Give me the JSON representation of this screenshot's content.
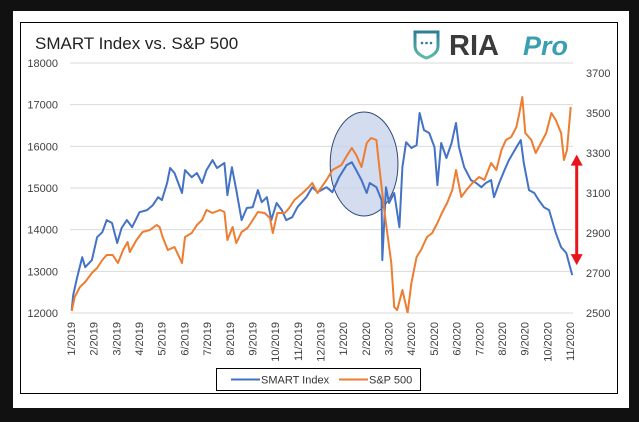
{
  "logo": {
    "text_main": "RIA",
    "text_accent": "Pro",
    "icon": "shield-icon",
    "colors": {
      "main": "#3b3b3b",
      "accent": "#3a9fb0"
    }
  },
  "chart_data": {
    "type": "line",
    "title": "SMART Index vs. S&P 500",
    "xlabel": "",
    "ylabel": "",
    "x_tick_labels": [
      "1/2019",
      "2/2019",
      "3/2019",
      "4/2019",
      "5/2019",
      "6/2019",
      "7/2019",
      "8/2019",
      "9/2019",
      "10/2019",
      "11/2019",
      "12/2019",
      "1/2020",
      "2/2020",
      "3/2020",
      "4/2020",
      "5/2020",
      "6/2020",
      "7/2020",
      "8/2020",
      "9/2020",
      "10/2020",
      "11/2020"
    ],
    "xlim": [
      "2019-01-01",
      "2020-11-01"
    ],
    "ylim_left": [
      12000,
      18000
    ],
    "y_left_ticks": [
      "18000",
      "17000",
      "16000",
      "15000",
      "14000",
      "13000",
      "12000"
    ],
    "ylim_right": [
      2500,
      3750
    ],
    "y_right_ticks": [
      "3700",
      "3500",
      "3300",
      "3100",
      "2900",
      "2700",
      "2500"
    ],
    "grid": true,
    "legend_placement": "bottom",
    "series": [
      {
        "name": "SMART Index",
        "axis": "left",
        "color": "#4472c4",
        "points": [
          [
            "2019-01-02",
            12070
          ],
          [
            "2019-01-04",
            12430
          ],
          [
            "2019-01-09",
            12840
          ],
          [
            "2019-01-16",
            13340
          ],
          [
            "2019-01-20",
            13100
          ],
          [
            "2019-01-29",
            13270
          ],
          [
            "2019-02-05",
            13820
          ],
          [
            "2019-02-12",
            13940
          ],
          [
            "2019-02-18",
            14230
          ],
          [
            "2019-02-25",
            14160
          ],
          [
            "2019-03-04",
            13680
          ],
          [
            "2019-03-10",
            14040
          ],
          [
            "2019-03-17",
            14230
          ],
          [
            "2019-03-24",
            14060
          ],
          [
            "2019-04-03",
            14420
          ],
          [
            "2019-04-13",
            14470
          ],
          [
            "2019-04-21",
            14590
          ],
          [
            "2019-04-28",
            14780
          ],
          [
            "2019-05-03",
            14710
          ],
          [
            "2019-05-10",
            15120
          ],
          [
            "2019-05-14",
            15480
          ],
          [
            "2019-05-20",
            15360
          ],
          [
            "2019-05-30",
            14880
          ],
          [
            "2019-06-03",
            15430
          ],
          [
            "2019-06-12",
            15260
          ],
          [
            "2019-06-19",
            15360
          ],
          [
            "2019-06-26",
            15120
          ],
          [
            "2019-07-02",
            15430
          ],
          [
            "2019-07-10",
            15670
          ],
          [
            "2019-07-16",
            15480
          ],
          [
            "2019-07-22",
            15550
          ],
          [
            "2019-07-26",
            15600
          ],
          [
            "2019-07-30",
            14830
          ],
          [
            "2019-08-05",
            15500
          ],
          [
            "2019-08-11",
            14950
          ],
          [
            "2019-08-18",
            14230
          ],
          [
            "2019-08-25",
            14520
          ],
          [
            "2019-09-02",
            14540
          ],
          [
            "2019-09-09",
            14950
          ],
          [
            "2019-09-14",
            14660
          ],
          [
            "2019-09-21",
            14780
          ],
          [
            "2019-09-27",
            14230
          ],
          [
            "2019-10-04",
            14640
          ],
          [
            "2019-10-11",
            14470
          ],
          [
            "2019-10-17",
            14230
          ],
          [
            "2019-10-25",
            14300
          ],
          [
            "2019-11-01",
            14540
          ],
          [
            "2019-11-13",
            14780
          ],
          [
            "2019-11-21",
            15020
          ],
          [
            "2019-11-28",
            14900
          ],
          [
            "2019-12-10",
            15020
          ],
          [
            "2019-12-18",
            14900
          ],
          [
            "2019-12-27",
            15260
          ],
          [
            "2020-01-06",
            15550
          ],
          [
            "2020-01-13",
            15620
          ],
          [
            "2020-01-19",
            15430
          ],
          [
            "2020-01-26",
            15190
          ],
          [
            "2020-02-02",
            14880
          ],
          [
            "2020-02-06",
            15120
          ],
          [
            "2020-02-15",
            15020
          ],
          [
            "2020-02-22",
            14710
          ],
          [
            "2020-02-23",
            13270
          ],
          [
            "2020-02-28",
            15020
          ],
          [
            "2020-03-03",
            14640
          ],
          [
            "2020-03-10",
            14880
          ],
          [
            "2020-03-17",
            14060
          ],
          [
            "2020-03-21",
            15500
          ],
          [
            "2020-03-26",
            16100
          ],
          [
            "2020-04-02",
            15960
          ],
          [
            "2020-04-09",
            16030
          ],
          [
            "2020-04-13",
            16800
          ],
          [
            "2020-04-19",
            16390
          ],
          [
            "2020-04-26",
            16320
          ],
          [
            "2020-05-03",
            15980
          ],
          [
            "2020-05-07",
            15070
          ],
          [
            "2020-05-12",
            16080
          ],
          [
            "2020-05-19",
            15720
          ],
          [
            "2020-05-26",
            16080
          ],
          [
            "2020-06-01",
            16560
          ],
          [
            "2020-06-05",
            15980
          ],
          [
            "2020-06-12",
            15500
          ],
          [
            "2020-06-21",
            15190
          ],
          [
            "2020-06-28",
            15120
          ],
          [
            "2020-07-05",
            15020
          ],
          [
            "2020-07-11",
            15120
          ],
          [
            "2020-07-18",
            15190
          ],
          [
            "2020-07-22",
            14780
          ],
          [
            "2020-07-29",
            15120
          ],
          [
            "2020-08-05",
            15430
          ],
          [
            "2020-08-11",
            15670
          ],
          [
            "2020-08-21",
            15980
          ],
          [
            "2020-08-27",
            16150
          ],
          [
            "2020-08-31",
            15600
          ],
          [
            "2020-09-07",
            14950
          ],
          [
            "2020-09-14",
            14880
          ],
          [
            "2020-09-20",
            14710
          ],
          [
            "2020-09-27",
            14540
          ],
          [
            "2020-10-04",
            14470
          ],
          [
            "2020-10-13",
            13920
          ],
          [
            "2020-10-20",
            13580
          ],
          [
            "2020-10-27",
            13440
          ],
          [
            "2020-11-04",
            12910
          ]
        ]
      },
      {
        "name": "S&P 500",
        "axis": "right",
        "color": "#ed7d31",
        "points": [
          [
            "2019-01-02",
            2510
          ],
          [
            "2019-01-06",
            2580
          ],
          [
            "2019-01-13",
            2630
          ],
          [
            "2019-01-20",
            2655
          ],
          [
            "2019-01-29",
            2700
          ],
          [
            "2019-02-05",
            2725
          ],
          [
            "2019-02-12",
            2765
          ],
          [
            "2019-02-18",
            2790
          ],
          [
            "2019-02-26",
            2790
          ],
          [
            "2019-03-05",
            2750
          ],
          [
            "2019-03-12",
            2815
          ],
          [
            "2019-03-18",
            2855
          ],
          [
            "2019-03-21",
            2805
          ],
          [
            "2019-03-30",
            2865
          ],
          [
            "2019-04-07",
            2905
          ],
          [
            "2019-04-17",
            2915
          ],
          [
            "2019-04-26",
            2940
          ],
          [
            "2019-04-30",
            2930
          ],
          [
            "2019-05-04",
            2880
          ],
          [
            "2019-05-11",
            2815
          ],
          [
            "2019-05-20",
            2830
          ],
          [
            "2019-05-30",
            2750
          ],
          [
            "2019-06-03",
            2880
          ],
          [
            "2019-06-12",
            2900
          ],
          [
            "2019-06-19",
            2940
          ],
          [
            "2019-06-26",
            2965
          ],
          [
            "2019-07-02",
            3015
          ],
          [
            "2019-07-10",
            3000
          ],
          [
            "2019-07-20",
            3015
          ],
          [
            "2019-07-26",
            3005
          ],
          [
            "2019-07-30",
            2865
          ],
          [
            "2019-08-06",
            2930
          ],
          [
            "2019-08-11",
            2850
          ],
          [
            "2019-08-18",
            2905
          ],
          [
            "2019-08-26",
            2925
          ],
          [
            "2019-09-02",
            2965
          ],
          [
            "2019-09-09",
            3005
          ],
          [
            "2019-09-18",
            3000
          ],
          [
            "2019-09-25",
            2975
          ],
          [
            "2019-09-29",
            2900
          ],
          [
            "2019-10-05",
            3000
          ],
          [
            "2019-10-15",
            3000
          ],
          [
            "2019-10-21",
            3025
          ],
          [
            "2019-10-28",
            3065
          ],
          [
            "2019-11-08",
            3100
          ],
          [
            "2019-11-15",
            3125
          ],
          [
            "2019-11-21",
            3150
          ],
          [
            "2019-11-28",
            3100
          ],
          [
            "2019-12-10",
            3165
          ],
          [
            "2019-12-18",
            3215
          ],
          [
            "2019-12-30",
            3240
          ],
          [
            "2020-01-07",
            3290
          ],
          [
            "2020-01-13",
            3325
          ],
          [
            "2020-01-19",
            3290
          ],
          [
            "2020-01-26",
            3230
          ],
          [
            "2020-02-02",
            3350
          ],
          [
            "2020-02-08",
            3375
          ],
          [
            "2020-02-15",
            3365
          ],
          [
            "2020-02-19",
            3230
          ],
          [
            "2020-02-26",
            3000
          ],
          [
            "2020-03-06",
            2750
          ],
          [
            "2020-03-10",
            2530
          ],
          [
            "2020-03-14",
            2515
          ],
          [
            "2020-03-21",
            2615
          ],
          [
            "2020-03-28",
            2500
          ],
          [
            "2020-04-02",
            2650
          ],
          [
            "2020-04-09",
            2780
          ],
          [
            "2020-04-15",
            2815
          ],
          [
            "2020-04-23",
            2880
          ],
          [
            "2020-04-30",
            2900
          ],
          [
            "2020-05-07",
            2950
          ],
          [
            "2020-05-13",
            3000
          ],
          [
            "2020-05-20",
            3050
          ],
          [
            "2020-05-27",
            3115
          ],
          [
            "2020-06-01",
            3215
          ],
          [
            "2020-06-08",
            3080
          ],
          [
            "2020-06-15",
            3115
          ],
          [
            "2020-06-23",
            3150
          ],
          [
            "2020-07-02",
            3180
          ],
          [
            "2020-07-09",
            3165
          ],
          [
            "2020-07-18",
            3250
          ],
          [
            "2020-07-25",
            3215
          ],
          [
            "2020-08-01",
            3315
          ],
          [
            "2020-08-07",
            3365
          ],
          [
            "2020-08-14",
            3380
          ],
          [
            "2020-08-21",
            3430
          ],
          [
            "2020-08-25",
            3500
          ],
          [
            "2020-08-29",
            3580
          ],
          [
            "2020-09-02",
            3400
          ],
          [
            "2020-09-10",
            3365
          ],
          [
            "2020-09-16",
            3300
          ],
          [
            "2020-09-23",
            3350
          ],
          [
            "2020-09-30",
            3400
          ],
          [
            "2020-10-07",
            3500
          ],
          [
            "2020-10-13",
            3465
          ],
          [
            "2020-10-20",
            3400
          ],
          [
            "2020-10-24",
            3265
          ],
          [
            "2020-10-28",
            3315
          ],
          [
            "2020-11-02",
            3530
          ]
        ]
      }
    ],
    "annotations": [
      {
        "type": "ellipse-highlight",
        "period": [
          "2019-12-15",
          "2020-03-15"
        ],
        "color": "#c5d0ea"
      },
      {
        "type": "double-arrow",
        "date": "2020-11-10",
        "range_left_axis": [
          13150,
          15800
        ],
        "color": "#e8161b"
      }
    ]
  }
}
